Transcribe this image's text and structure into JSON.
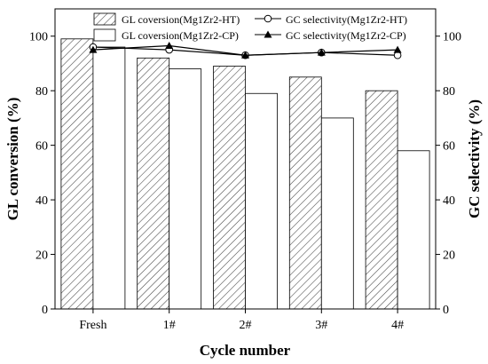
{
  "chart_data": {
    "type": "bar",
    "xlabel": "Cycle number",
    "ylabel": "GL conversion (%)",
    "y2label": "GC selectivity (%)",
    "categories": [
      "Fresh",
      "1#",
      "2#",
      "3#",
      "4#"
    ],
    "ylim": [
      0,
      110
    ],
    "y2lim": [
      0,
      110
    ],
    "yticks": [
      "0",
      "20",
      "40",
      "60",
      "80",
      "100"
    ],
    "y2ticks": [
      "0",
      "20",
      "40",
      "60",
      "80",
      "100"
    ],
    "grid": false,
    "legend_position": "top",
    "bar_series": [
      {
        "name": "GL coversion(Mg1Zr2-HT)",
        "style": "hatched",
        "values": [
          99,
          92,
          89,
          85,
          80
        ]
      },
      {
        "name": "GL coversion(Mg1Zr2-CP)",
        "style": "open",
        "values": [
          96,
          88,
          79,
          70,
          58
        ]
      }
    ],
    "line_series": [
      {
        "name": "GC selectivity(Mg1Zr2-HT)",
        "marker": "open-circle",
        "values": [
          96,
          95,
          93,
          94,
          93
        ]
      },
      {
        "name": "GC selectivity(Mg1Zr2-CP)",
        "marker": "filled-triangle",
        "values": [
          95,
          96.5,
          93,
          94,
          95
        ]
      }
    ]
  }
}
